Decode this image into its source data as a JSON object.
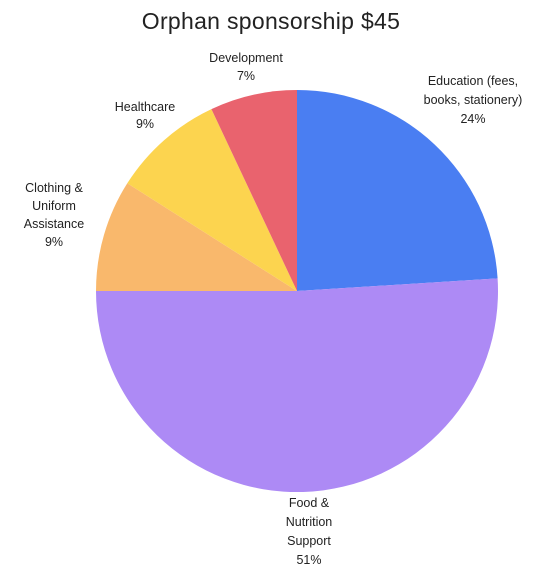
{
  "chart_data": {
    "type": "pie",
    "title": "Orphan sponsorship $45",
    "slices": [
      {
        "lines": [
          "Education (fees,",
          "books, stationery)",
          "24%"
        ],
        "value": 24,
        "color": "#4a7ef2"
      },
      {
        "lines": [
          "Food &",
          "Nutrition",
          "Support",
          "51%"
        ],
        "value": 51,
        "color": "#ad8af5"
      },
      {
        "lines": [
          "Clothing &",
          "Uniform",
          "Assistance",
          "9%"
        ],
        "value": 9,
        "color": "#f9b86c"
      },
      {
        "lines": [
          "Healthcare",
          "9%"
        ],
        "value": 9,
        "color": "#fcd44f"
      },
      {
        "lines": [
          "Development",
          "7%"
        ],
        "value": 7,
        "color": "#e9636e"
      }
    ],
    "start_angle_deg": 0,
    "direction": "clockwise",
    "legend": "none"
  }
}
